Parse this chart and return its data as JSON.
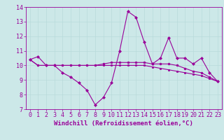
{
  "xlabel": "Windchill (Refroidissement éolien,°C)",
  "background_color": "#cce8e8",
  "line_color": "#990099",
  "xlim": [
    -0.5,
    23.5
  ],
  "ylim": [
    7,
    14
  ],
  "yticks": [
    7,
    8,
    9,
    10,
    11,
    12,
    13,
    14
  ],
  "xticks": [
    0,
    1,
    2,
    3,
    4,
    5,
    6,
    7,
    8,
    9,
    10,
    11,
    12,
    13,
    14,
    15,
    16,
    17,
    18,
    19,
    20,
    21,
    22,
    23
  ],
  "series": [
    [
      10.4,
      10.6,
      10.0,
      10.0,
      9.5,
      9.2,
      8.8,
      8.3,
      7.3,
      7.8,
      8.8,
      11.0,
      13.7,
      13.3,
      11.6,
      10.1,
      10.5,
      11.9,
      10.5,
      10.5,
      10.1,
      10.5,
      9.5,
      8.9
    ],
    [
      10.4,
      10.0,
      10.0,
      10.0,
      10.0,
      10.0,
      10.0,
      10.0,
      10.0,
      10.1,
      10.2,
      10.2,
      10.2,
      10.2,
      10.2,
      10.1,
      10.1,
      10.1,
      10.0,
      9.8,
      9.6,
      9.5,
      9.2,
      8.9
    ],
    [
      10.4,
      10.0,
      10.0,
      10.0,
      10.0,
      10.0,
      10.0,
      10.0,
      10.0,
      10.0,
      10.0,
      10.0,
      10.0,
      10.0,
      10.0,
      9.9,
      9.8,
      9.7,
      9.6,
      9.5,
      9.4,
      9.3,
      9.1,
      8.9
    ]
  ],
  "grid_color": "#b8dada",
  "spine_color": "#990099",
  "tick_label_fontsize": 6.0,
  "xlabel_fontsize": 6.5
}
